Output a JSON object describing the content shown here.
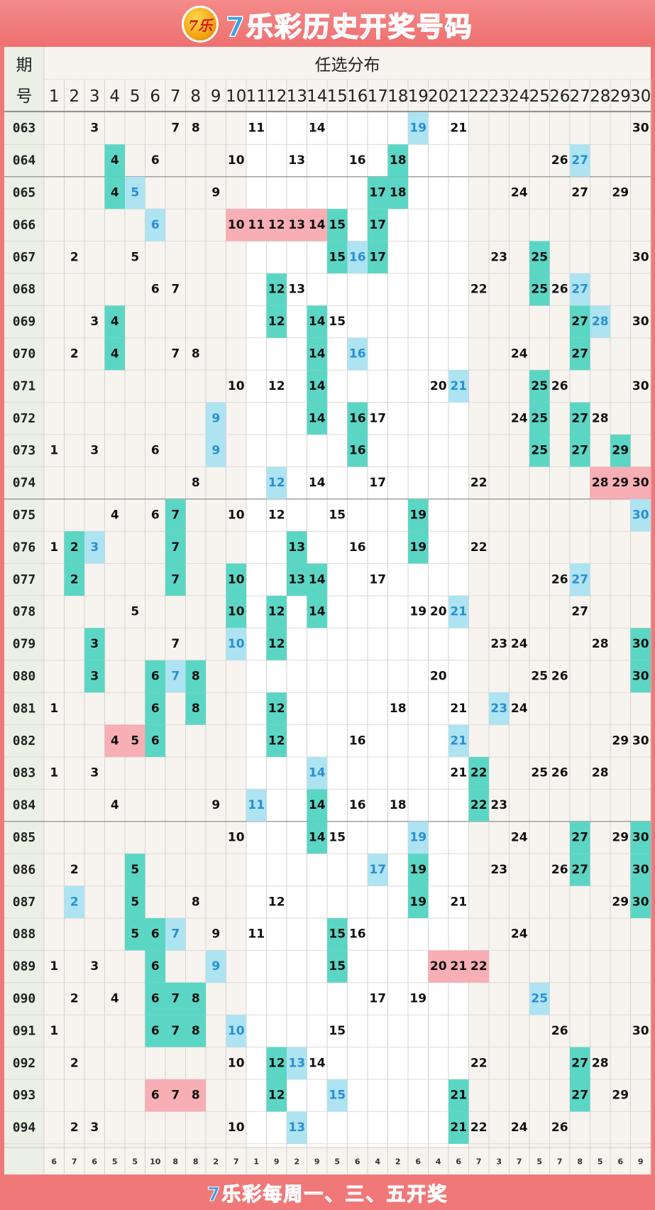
{
  "header": {
    "title": "7乐彩历史开奖号码",
    "logo_text": "7乐"
  },
  "footer": {
    "text": "7乐彩每周一、三、五开奖"
  },
  "colors": {
    "banner": "#f07878",
    "hit": "#5cd6c4",
    "special": "#aee3f1",
    "pair": "#f7aeb4",
    "special_text": "#2a8fd0",
    "normal_text": "#111111"
  },
  "chart_data": {
    "type": "table",
    "col_header_period": "期号",
    "col_header_group": "任选分布",
    "numbers": [
      1,
      2,
      3,
      4,
      5,
      6,
      7,
      8,
      9,
      10,
      11,
      12,
      13,
      14,
      15,
      16,
      17,
      18,
      19,
      20,
      21,
      22,
      23,
      24,
      25,
      26,
      27,
      28,
      29,
      30
    ],
    "rows": [
      {
        "period": "063",
        "hits": [
          3,
          7,
          8,
          11,
          14,
          21,
          30
        ],
        "special": 19
      },
      {
        "period": "064",
        "hits": [
          4,
          6,
          10,
          13,
          16,
          18,
          26
        ],
        "special": 27
      },
      {
        "period": "065",
        "hits": [
          4,
          9,
          17,
          18,
          24,
          27,
          29
        ],
        "special": 5
      },
      {
        "period": "066",
        "hits": [
          10,
          11,
          12,
          13,
          14,
          15,
          17
        ],
        "special": 6
      },
      {
        "period": "067",
        "hits": [
          2,
          5,
          15,
          17,
          23,
          25,
          30
        ],
        "special": 16
      },
      {
        "period": "068",
        "hits": [
          6,
          7,
          12,
          13,
          22,
          25,
          26
        ],
        "special": 27
      },
      {
        "period": "069",
        "hits": [
          3,
          4,
          12,
          14,
          15,
          27,
          30
        ],
        "special": 28
      },
      {
        "period": "070",
        "hits": [
          2,
          4,
          7,
          8,
          14,
          24,
          27
        ],
        "special": 16
      },
      {
        "period": "071",
        "hits": [
          10,
          12,
          14,
          20,
          25,
          26,
          30
        ],
        "special": 21
      },
      {
        "period": "072",
        "hits": [
          14,
          16,
          17,
          24,
          25,
          27,
          28
        ],
        "special": 9
      },
      {
        "period": "073",
        "hits": [
          1,
          3,
          6,
          16,
          25,
          27,
          29
        ],
        "special": 9
      },
      {
        "period": "074",
        "hits": [
          8,
          14,
          17,
          22,
          28,
          29,
          30
        ],
        "special": 12
      },
      {
        "period": "075",
        "hits": [
          4,
          6,
          7,
          10,
          12,
          15,
          19
        ],
        "special": 30
      },
      {
        "period": "076",
        "hits": [
          1,
          2,
          7,
          13,
          16,
          19,
          22
        ],
        "special": 3
      },
      {
        "period": "077",
        "hits": [
          2,
          7,
          10,
          13,
          14,
          17,
          26
        ],
        "special": 27
      },
      {
        "period": "078",
        "hits": [
          5,
          10,
          12,
          14,
          19,
          20,
          27
        ],
        "special": 21
      },
      {
        "period": "079",
        "hits": [
          3,
          7,
          12,
          23,
          24,
          28,
          30
        ],
        "special": 10
      },
      {
        "period": "080",
        "hits": [
          3,
          6,
          8,
          20,
          25,
          26,
          30
        ],
        "special": 7
      },
      {
        "period": "081",
        "hits": [
          1,
          6,
          8,
          12,
          18,
          21,
          24
        ],
        "special": 23
      },
      {
        "period": "082",
        "hits": [
          4,
          5,
          6,
          12,
          16,
          29,
          30
        ],
        "special": 21
      },
      {
        "period": "083",
        "hits": [
          1,
          3,
          21,
          22,
          25,
          26,
          28
        ],
        "special": 14
      },
      {
        "period": "084",
        "hits": [
          4,
          9,
          14,
          16,
          18,
          22,
          23
        ],
        "special": 11
      },
      {
        "period": "085",
        "hits": [
          10,
          14,
          15,
          24,
          27,
          29,
          30
        ],
        "special": 19
      },
      {
        "period": "086",
        "hits": [
          2,
          5,
          19,
          23,
          26,
          27,
          30
        ],
        "special": 17
      },
      {
        "period": "087",
        "hits": [
          5,
          8,
          12,
          19,
          21,
          29,
          30
        ],
        "special": 2
      },
      {
        "period": "088",
        "hits": [
          5,
          6,
          9,
          11,
          15,
          16,
          24
        ],
        "special": 7
      },
      {
        "period": "089",
        "hits": [
          1,
          3,
          6,
          15,
          20,
          21,
          22
        ],
        "special": 9
      },
      {
        "period": "090",
        "hits": [
          2,
          4,
          6,
          7,
          8,
          17,
          19
        ],
        "special": 25
      },
      {
        "period": "091",
        "hits": [
          1,
          6,
          7,
          8,
          15,
          26,
          30
        ],
        "special": 10
      },
      {
        "period": "092",
        "hits": [
          2,
          10,
          12,
          14,
          22,
          27,
          28
        ],
        "special": 13
      },
      {
        "period": "093",
        "hits": [
          6,
          7,
          8,
          12,
          21,
          27,
          29
        ],
        "special": 15
      },
      {
        "period": "094",
        "hits": [
          2,
          3,
          10,
          21,
          22,
          24,
          26
        ],
        "special": 13
      }
    ],
    "totals": [
      6,
      7,
      6,
      5,
      5,
      10,
      8,
      8,
      2,
      7,
      1,
      9,
      2,
      9,
      5,
      6,
      4,
      2,
      6,
      4,
      6,
      7,
      3,
      7,
      5,
      7,
      8,
      5,
      6,
      9
    ],
    "pair_highlights": [
      {
        "period": "066",
        "from": 10,
        "to": 14
      },
      {
        "period": "074",
        "from": 28,
        "to": 30
      },
      {
        "period": "082",
        "from": 4,
        "to": 5
      },
      {
        "period": "089",
        "from": 20,
        "to": 22
      },
      {
        "period": "093",
        "from": 6,
        "to": 8
      }
    ]
  }
}
